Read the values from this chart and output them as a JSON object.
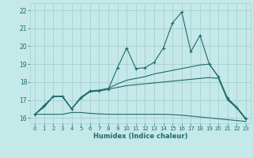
{
  "xlabel": "Humidex (Indice chaleur)",
  "background_color": "#c5e8e8",
  "grid_color": "#a8d0d0",
  "line_color": "#1e6b6b",
  "x_values": [
    0,
    1,
    2,
    3,
    4,
    5,
    6,
    7,
    8,
    9,
    10,
    11,
    12,
    13,
    14,
    15,
    16,
    17,
    18,
    19,
    20,
    21,
    22,
    23
  ],
  "main_y": [
    16.2,
    16.7,
    17.2,
    17.2,
    16.5,
    17.1,
    17.5,
    17.5,
    17.6,
    18.8,
    19.9,
    18.75,
    18.8,
    19.1,
    19.9,
    21.3,
    21.9,
    19.7,
    20.6,
    19.0,
    18.3,
    17.1,
    16.6,
    15.95
  ],
  "upper_y": [
    16.2,
    16.65,
    17.2,
    17.2,
    16.5,
    17.15,
    17.5,
    17.55,
    17.65,
    17.9,
    18.1,
    18.2,
    18.3,
    18.45,
    18.55,
    18.65,
    18.75,
    18.85,
    18.95,
    19.0,
    18.3,
    17.05,
    16.6,
    15.95
  ],
  "mid_y": [
    16.2,
    16.6,
    17.2,
    17.2,
    16.5,
    17.1,
    17.45,
    17.5,
    17.6,
    17.7,
    17.8,
    17.85,
    17.9,
    17.95,
    18.0,
    18.05,
    18.1,
    18.15,
    18.2,
    18.25,
    18.2,
    17.0,
    16.55,
    15.9
  ],
  "lower_y": [
    16.2,
    16.2,
    16.2,
    16.2,
    16.3,
    16.3,
    16.25,
    16.22,
    16.2,
    16.2,
    16.2,
    16.2,
    16.2,
    16.2,
    16.2,
    16.18,
    16.15,
    16.1,
    16.05,
    16.0,
    15.95,
    15.9,
    15.85,
    15.8
  ],
  "ylim": [
    15.7,
    22.4
  ],
  "yticks": [
    16,
    17,
    18,
    19,
    20,
    21,
    22
  ],
  "xticks": [
    0,
    1,
    2,
    3,
    4,
    5,
    6,
    7,
    8,
    9,
    10,
    11,
    12,
    13,
    14,
    15,
    16,
    17,
    18,
    19,
    20,
    21,
    22,
    23
  ]
}
